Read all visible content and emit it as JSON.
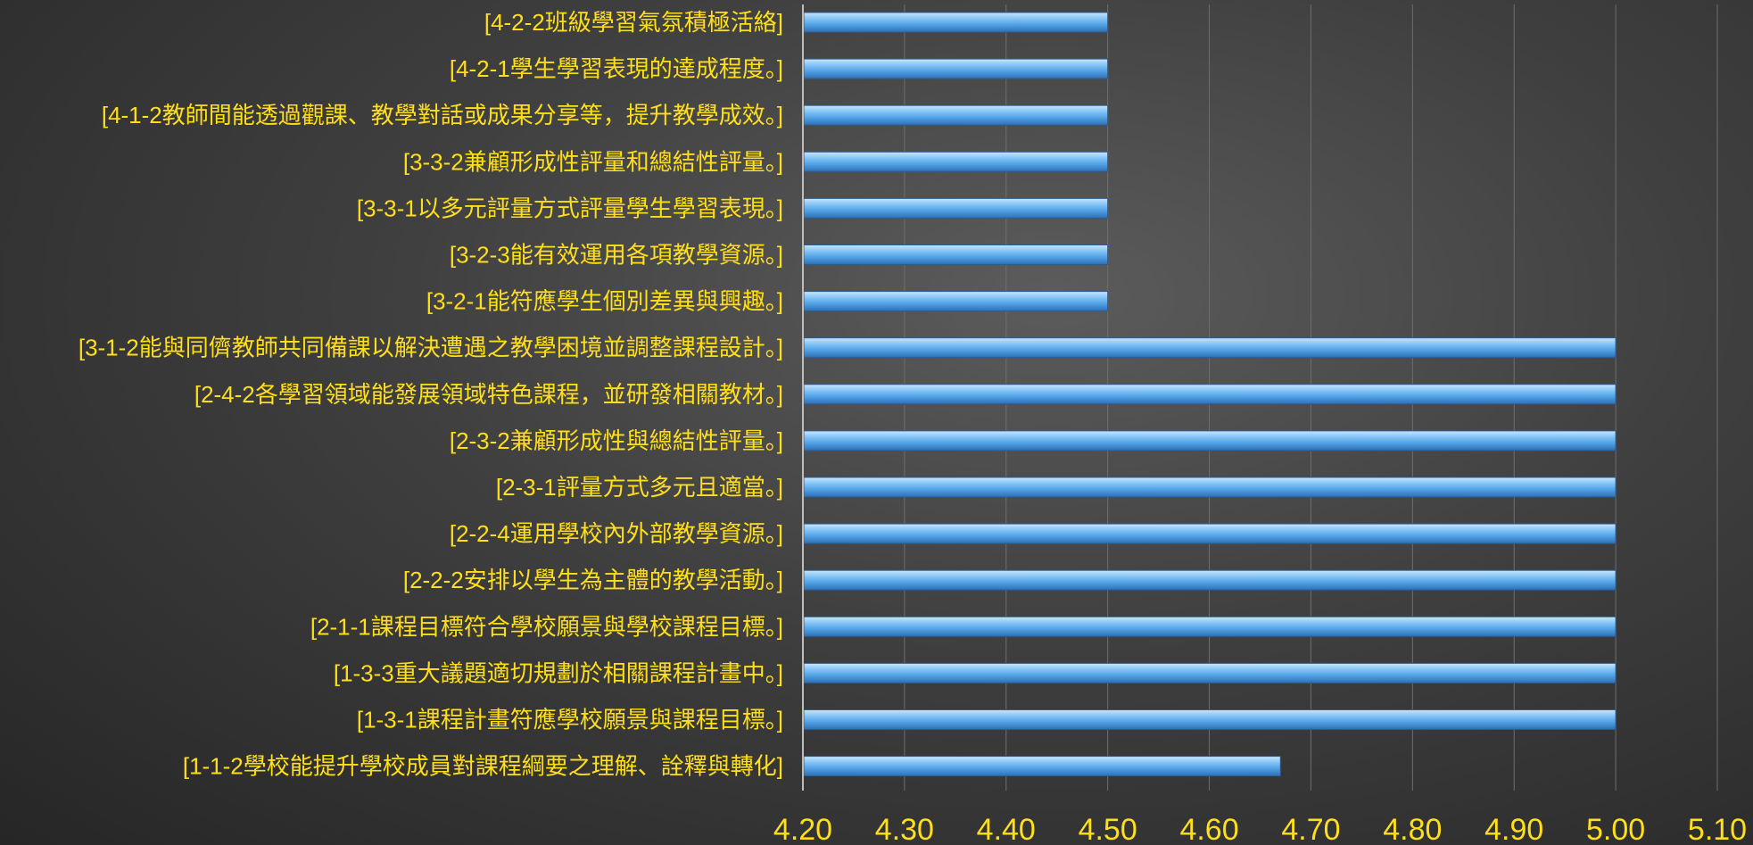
{
  "chart_data": {
    "type": "bar",
    "orientation": "horizontal",
    "categories": [
      "[4-2-2班級學習氣氛積極活絡]",
      "[4-2-1學生學習表現的達成程度。]",
      "[4-1-2教師間能透過觀課、教學對話或成果分享等，提升教學成效。]",
      "[3-3-2兼顧形成性評量和總結性評量。]",
      "[3-3-1以多元評量方式評量學生學習表現。]",
      "[3-2-3能有效運用各項教學資源。]",
      "[3-2-1能符應學生個別差異與興趣。]",
      "[3-1-2能與同儕教師共同備課以解決遭遇之教學困境並調整課程設計。]",
      "[2-4-2各學習領域能發展領域特色課程，並研發相關教材。]",
      "[2-3-2兼顧形成性與總結性評量。]",
      "[2-3-1評量方式多元且適當。]",
      "[2-2-4運用學校內外部教學資源。]",
      "[2-2-2安排以學生為主體的教學活動。]",
      "[2-1-1課程目標符合學校願景與學校課程目標。]",
      "[1-3-3重大議題適切規劃於相關課程計畫中。]",
      "[1-3-1課程計畫符應學校願景與課程目標。]",
      "[1-1-2學校能提升學校成員對課程綱要之理解、詮釋與轉化]"
    ],
    "values": [
      4.5,
      4.5,
      4.5,
      4.5,
      4.5,
      4.5,
      4.5,
      5.0,
      5.0,
      5.0,
      5.0,
      5.0,
      5.0,
      5.0,
      5.0,
      5.0,
      4.67
    ],
    "xlim": [
      4.2,
      5.1
    ],
    "ticks": [
      "4.20",
      "4.30",
      "4.40",
      "4.50",
      "4.60",
      "4.70",
      "4.80",
      "4.90",
      "5.00",
      "5.10"
    ],
    "grid": "vertical",
    "legend": "none",
    "bar_color": "#5aa7e6",
    "label_color": "#ffde1a"
  }
}
